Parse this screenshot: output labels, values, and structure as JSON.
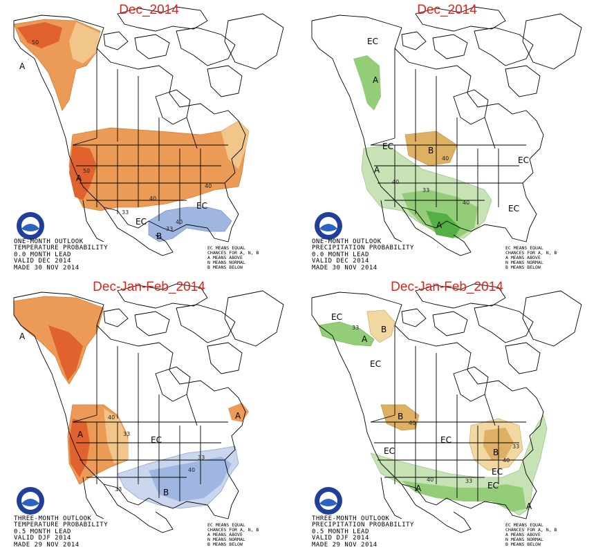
{
  "colors": {
    "above_light": "#f2c58a",
    "above_mid": "#eb9b55",
    "above_dark": "#e0632f",
    "below_light": "#c9d6ee",
    "below_mid": "#9fb6e0",
    "wet_light": "#c7e2b4",
    "wet_mid": "#93cd78",
    "wet_dark": "#54b044",
    "dry_light": "#f0d8a0",
    "dry_mid": "#ddb063",
    "title_red": "#e2231a"
  },
  "legend_lines": [
    "EC MEANS EQUAL",
    "CHANCES FOR A, N, B",
    "A MEANS ABOVE",
    "N MEANS NORMAL",
    "B MEANS BELOW"
  ],
  "panels": [
    {
      "title": "Dec_2014",
      "caption": [
        "ONE-MONTH OUTLOOK",
        "TEMPERATURE PROBABILITY",
        "0.0 MONTH LEAD",
        "VALID DEC 2014",
        "MADE 30 NOV 2014"
      ],
      "labels": {
        "a1": "A",
        "a2": "A",
        "b1": "B",
        "ec1": "EC",
        "ec2": "EC"
      },
      "numbers": {
        "n1": "50",
        "n2": "50",
        "n3": "40",
        "n4": "40",
        "n5": "33",
        "n6": "33",
        "n7": "40"
      }
    },
    {
      "title": "Dec_2014",
      "caption": [
        "ONE-MONTH OUTLOOK",
        "PRECIPITATION PROBABILITY",
        "0.0 MONTH LEAD",
        "VALID DEC 2014",
        "MADE 30 NOV 2014"
      ],
      "labels": {
        "ec1": "EC",
        "a1": "A",
        "ec2": "EC",
        "b1": "B",
        "ec3": "EC",
        "a2": "A",
        "ec4": "EC",
        "a3": "A"
      },
      "numbers": {
        "n1": "40",
        "n2": "40",
        "n3": "33",
        "n4": "40"
      }
    },
    {
      "title": "Dec-Jan-Feb_2014",
      "caption": [
        "THREE-MONTH OUTLOOK",
        "TEMPERATURE PROBABILITY",
        "0.5 MONTH LEAD",
        "VALID DJF 2014",
        "MADE 29 NOV 2014"
      ],
      "labels": {
        "a1": "A",
        "a2": "A",
        "a3": "A",
        "ec1": "EC",
        "b1": "B"
      },
      "numbers": {
        "n1": "40",
        "n2": "33",
        "n3": "33",
        "n4": "40",
        "n5": "33"
      }
    },
    {
      "title": "Dec-Jan-Feb_2014",
      "caption": [
        "THREE-MONTH OUTLOOK",
        "PRECIPITATION PROBABILITY",
        "0.5 MONTH LEAD",
        "VALID DJF 2014",
        "MADE 29 NOV 2014"
      ],
      "labels": {
        "ec1": "EC",
        "a1": "A",
        "b1": "B",
        "ec2": "EC",
        "b2": "B",
        "ec3": "EC",
        "ec4": "EC",
        "b3": "B",
        "a2": "A",
        "ec5": "EC",
        "a3": "A",
        "ec6": "EC"
      },
      "numbers": {
        "n1": "33",
        "n2": "40",
        "n3": "40",
        "n4": "33",
        "n5": "40",
        "n6": "33"
      }
    }
  ]
}
